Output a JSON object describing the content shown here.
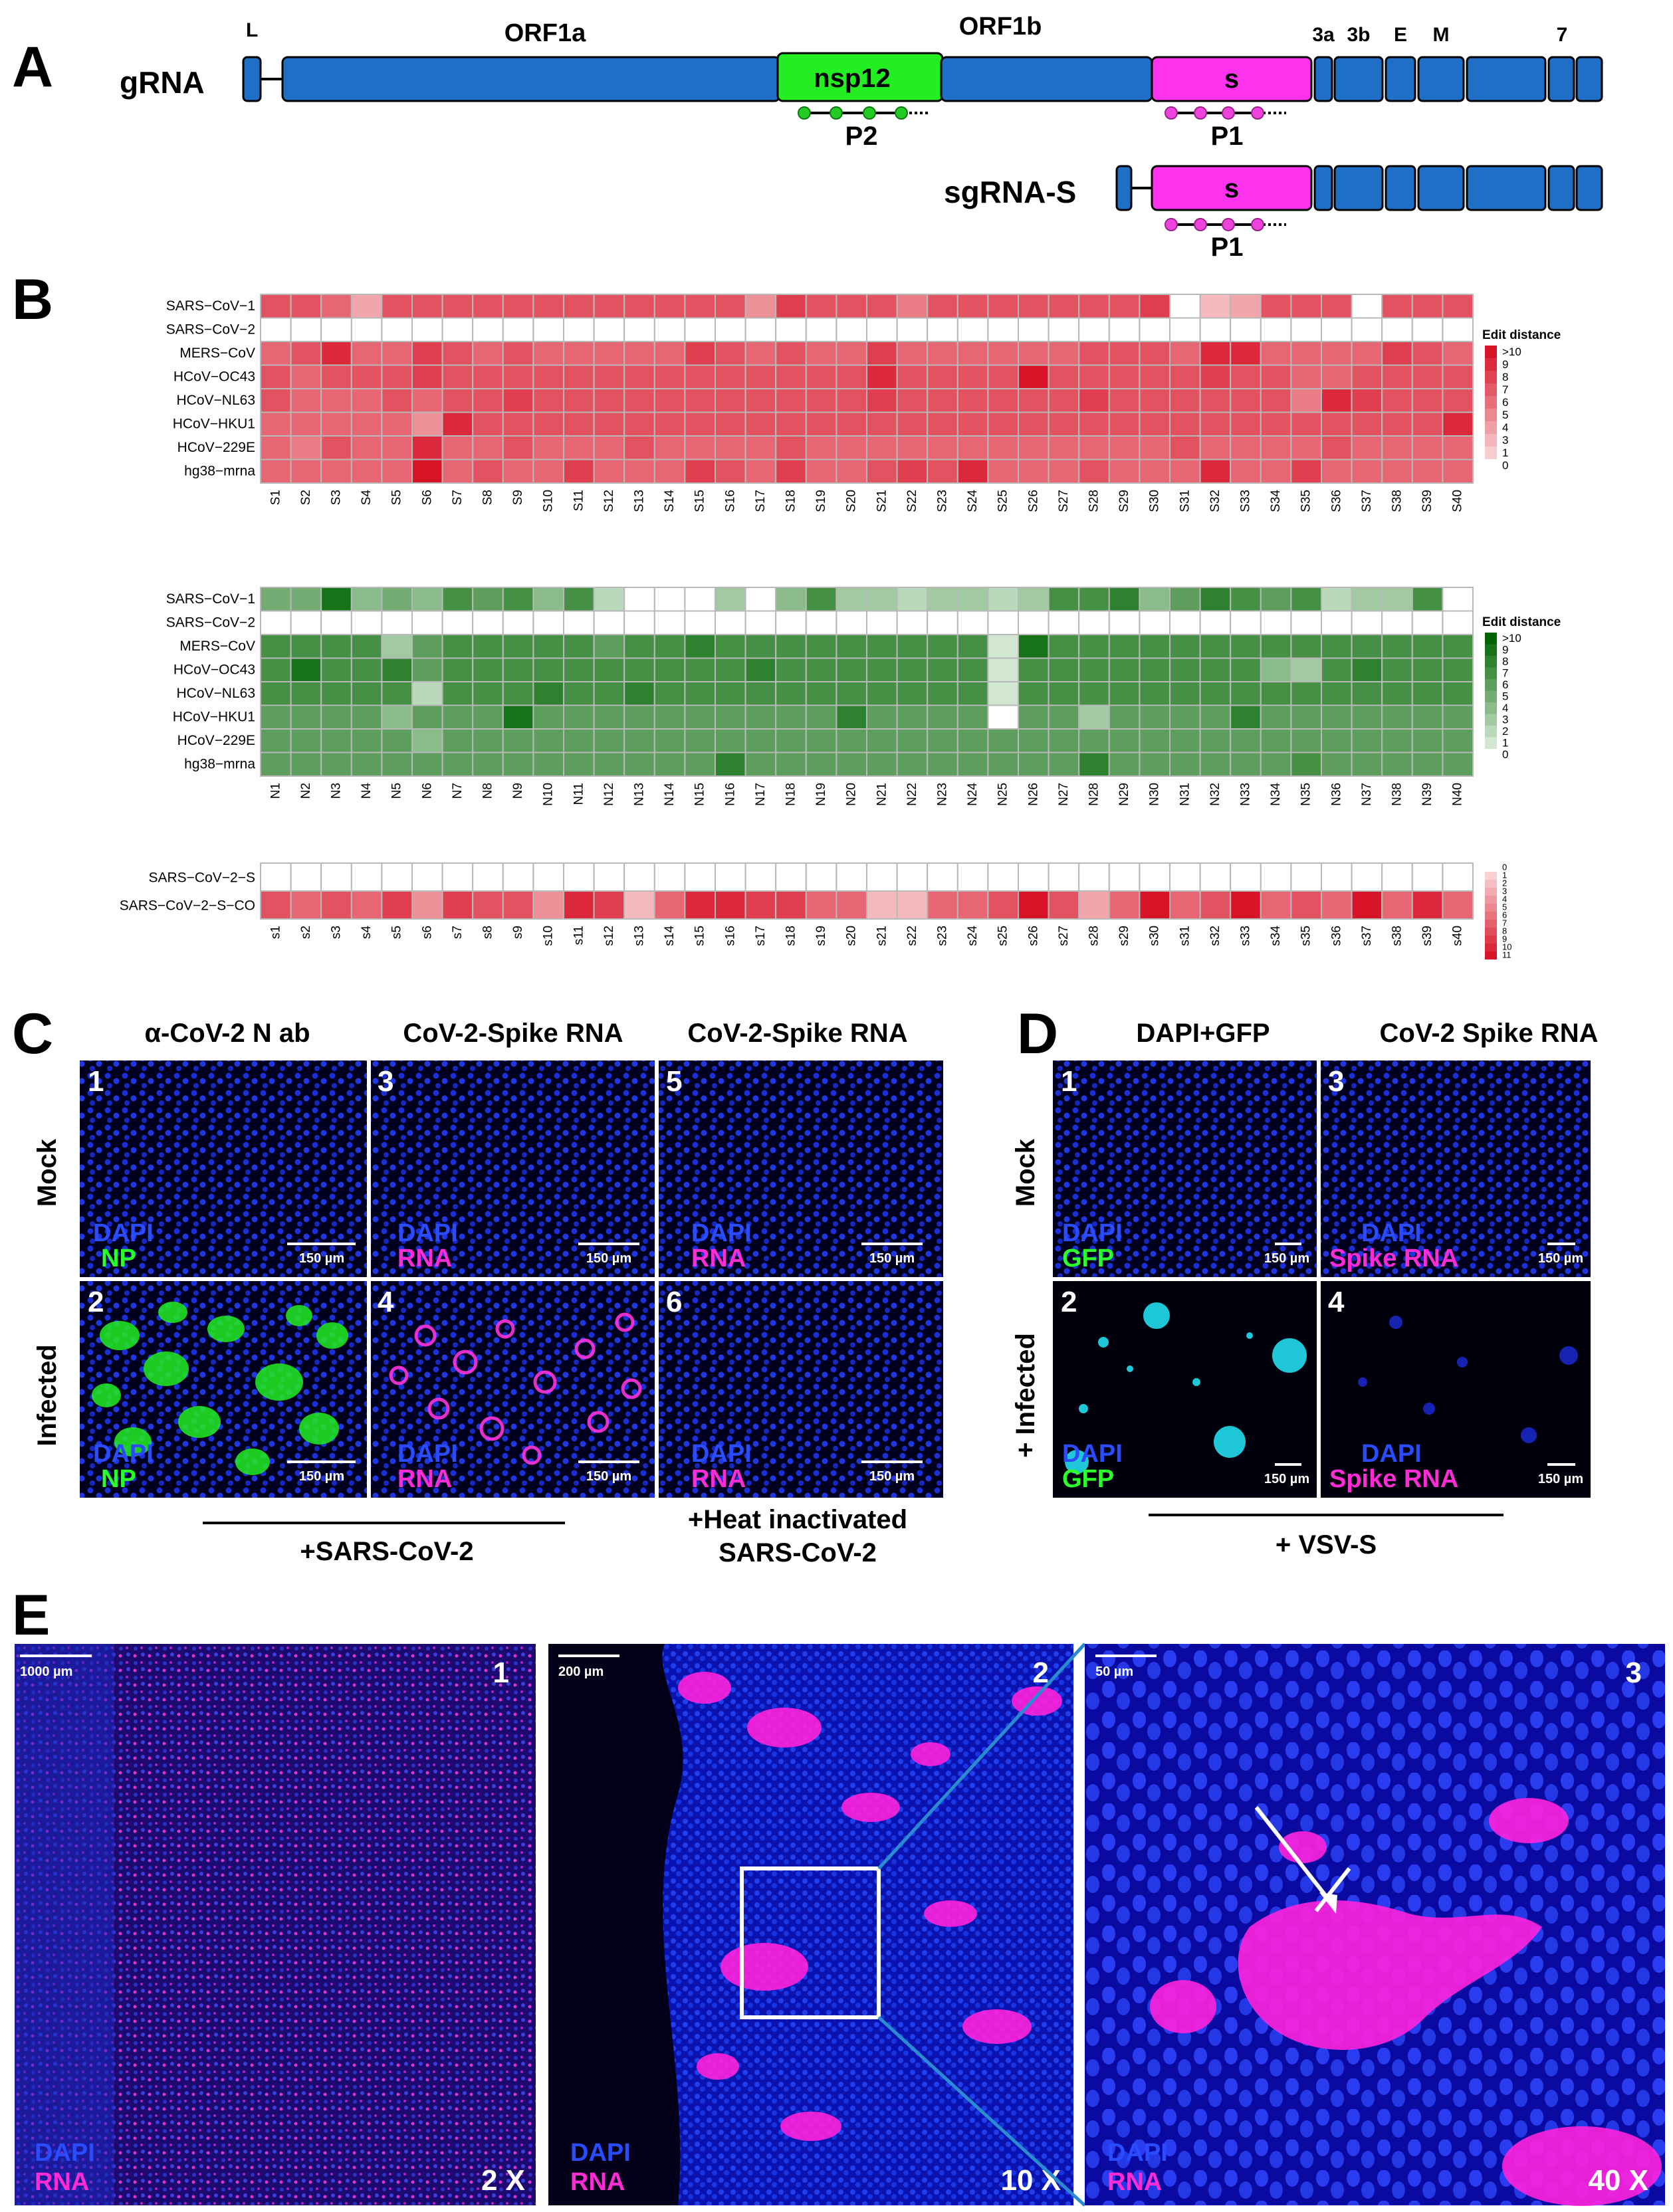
{
  "panels": {
    "A": {
      "letter": "A",
      "track1_label": "gRNA",
      "track2_label": "sgRNA-S",
      "segments_top": {
        "L": "L",
        "ORF1a": "ORF1a",
        "ORF1b": "ORF1b",
        "a3": "3a",
        "b3": "3b",
        "E": "E",
        "M": "M",
        "s7": "7"
      },
      "nsp12": "nsp12",
      "s_label": "s",
      "P1": "P1",
      "P2": "P2"
    },
    "B": {
      "letter": "B",
      "legend_title": "Edit distance",
      "row_labels": [
        "SARS−CoV−1",
        "SARS−CoV−2",
        "MERS−CoV",
        "HCoV−OC43",
        "HCoV−NL63",
        "HCoV−HKU1",
        "HCoV−229E",
        "hg38−mrna"
      ],
      "legend_ticks": [
        ">10",
        "9",
        "8",
        "7",
        "6",
        "5",
        "4",
        "3",
        "1",
        "0"
      ],
      "legend_ticks_green": [
        ">10",
        "9",
        "8",
        "7",
        "6",
        "5",
        "4",
        "3",
        "2",
        "1",
        "0"
      ],
      "legend_ticks_small": [
        "0",
        "1",
        "2",
        "3",
        "4",
        "5",
        "6",
        "7",
        "8",
        "9",
        "10",
        "11"
      ],
      "co_row_labels": [
        "SARS−CoV−2−S",
        "SARS−CoV−2−S−CO"
      ]
    },
    "C": {
      "letter": "C",
      "col_heads": [
        "α-CoV-2 N ab",
        "CoV-2-Spike RNA",
        "CoV-2-Spike RNA"
      ],
      "row_heads": [
        "Mock",
        "Infected"
      ],
      "nums": [
        "1",
        "2",
        "3",
        "4",
        "5",
        "6"
      ],
      "dapi": "DAPI",
      "np": "NP",
      "rna": "RNA",
      "scale": "150 µm",
      "footer1": "+SARS-CoV-2",
      "footer2a": "+Heat inactivated",
      "footer2b": "SARS-CoV-2"
    },
    "D": {
      "letter": "D",
      "col_heads": [
        "DAPI+GFP",
        "CoV-2 Spike RNA"
      ],
      "row_heads": [
        "Mock",
        "+ Infected"
      ],
      "nums": [
        "1",
        "2",
        "3",
        "4"
      ],
      "dapi": "DAPI",
      "gfp": "GFP",
      "spike": "Spike RNA",
      "scale": "150 µm",
      "footer": "+ VSV-S"
    },
    "E": {
      "letter": "E",
      "nums": [
        "1",
        "2",
        "3"
      ],
      "scales": [
        "1000 µm",
        "200 µm",
        "50 µm"
      ],
      "mags": [
        "2 X",
        "10 X",
        "40 X"
      ],
      "dapi": "DAPI",
      "rna": "RNA"
    }
  },
  "chart_data": [
    {
      "type": "heatmap",
      "name_note": "",
      "colors": "red",
      "rows": [
        "SARS−CoV−1",
        "SARS−CoV−2",
        "MERS−CoV",
        "HCoV−OC43",
        "HCoV−NL63",
        "HCoV−HKU1",
        "HCoV−229E",
        "hg38−mrna"
      ],
      "columns": [
        "S1",
        "S2",
        "S3",
        "S4",
        "S5",
        "S6",
        "S7",
        "S8",
        "S9",
        "S10",
        "S11",
        "S12",
        "S13",
        "S14",
        "S15",
        "S16",
        "S17",
        "S18",
        "S19",
        "S20",
        "S21",
        "S22",
        "S23",
        "S24",
        "S25",
        "S26",
        "S27",
        "S28",
        "S29",
        "S30",
        "S31",
        "S32",
        "S33",
        "S34",
        "S35",
        "S36",
        "S37",
        "S38",
        "S39",
        "S40"
      ],
      "values": [
        [
          7,
          7,
          6,
          3,
          7,
          7,
          7,
          7,
          7,
          7,
          7,
          7,
          7,
          7,
          7,
          7,
          4,
          8,
          7,
          7,
          7,
          5,
          7,
          7,
          7,
          7,
          7,
          7,
          7,
          8,
          0,
          2,
          3,
          7,
          7,
          7,
          0,
          7,
          7,
          7
        ],
        [
          0,
          0,
          0,
          0,
          0,
          0,
          0,
          0,
          0,
          0,
          0,
          0,
          0,
          0,
          0,
          0,
          0,
          0,
          0,
          0,
          0,
          0,
          0,
          0,
          0,
          0,
          0,
          0,
          0,
          0,
          0,
          0,
          0,
          0,
          0,
          0,
          0,
          0,
          0,
          0
        ],
        [
          6,
          7,
          9,
          6,
          6,
          8,
          7,
          6,
          7,
          6,
          6,
          6,
          6,
          6,
          8,
          7,
          6,
          7,
          6,
          6,
          8,
          6,
          6,
          6,
          6,
          6,
          6,
          7,
          7,
          7,
          6,
          9,
          9,
          6,
          6,
          6,
          6,
          8,
          7,
          6
        ],
        [
          7,
          6,
          7,
          7,
          7,
          8,
          7,
          7,
          7,
          7,
          7,
          7,
          7,
          7,
          7,
          7,
          7,
          7,
          7,
          7,
          9,
          7,
          7,
          7,
          7,
          10,
          7,
          7,
          7,
          7,
          7,
          8,
          7,
          7,
          6,
          6,
          7,
          7,
          7,
          7
        ],
        [
          7,
          6,
          6,
          6,
          7,
          6,
          7,
          7,
          8,
          7,
          7,
          7,
          7,
          7,
          7,
          7,
          7,
          7,
          7,
          7,
          8,
          7,
          7,
          7,
          7,
          7,
          7,
          8,
          7,
          7,
          7,
          7,
          7,
          7,
          5,
          9,
          8,
          7,
          7,
          7
        ],
        [
          6,
          6,
          6,
          6,
          6,
          4,
          9,
          7,
          7,
          7,
          7,
          7,
          7,
          7,
          7,
          7,
          7,
          7,
          7,
          7,
          7,
          7,
          7,
          7,
          7,
          7,
          7,
          7,
          7,
          7,
          7,
          7,
          7,
          7,
          7,
          7,
          7,
          7,
          7,
          9
        ],
        [
          6,
          5,
          7,
          6,
          6,
          9,
          6,
          6,
          7,
          6,
          6,
          6,
          7,
          6,
          6,
          6,
          6,
          7,
          6,
          6,
          6,
          6,
          6,
          6,
          6,
          6,
          6,
          6,
          6,
          6,
          7,
          6,
          6,
          6,
          6,
          7,
          6,
          6,
          6,
          6
        ],
        [
          6,
          6,
          6,
          6,
          6,
          10,
          6,
          7,
          6,
          6,
          8,
          6,
          6,
          6,
          8,
          7,
          6,
          8,
          6,
          6,
          7,
          8,
          7,
          9,
          6,
          6,
          6,
          7,
          6,
          6,
          6,
          9,
          6,
          6,
          8,
          6,
          6,
          6,
          6,
          6
        ]
      ]
    },
    {
      "type": "heatmap",
      "colors": "green",
      "rows": [
        "SARS−CoV−1",
        "SARS−CoV−2",
        "MERS−CoV",
        "HCoV−OC43",
        "HCoV−NL63",
        "HCoV−HKU1",
        "HCoV−229E",
        "hg38−mrna"
      ],
      "columns": [
        "N1",
        "N2",
        "N3",
        "N4",
        "N5",
        "N6",
        "N7",
        "N8",
        "N9",
        "N10",
        "N11",
        "N12",
        "N13",
        "N14",
        "N15",
        "N16",
        "N17",
        "N18",
        "N19",
        "N20",
        "N21",
        "N22",
        "N23",
        "N24",
        "N25",
        "N26",
        "N27",
        "N28",
        "N29",
        "N30",
        "N31",
        "N32",
        "N33",
        "N34",
        "N35",
        "N36",
        "N37",
        "N38",
        "N39",
        "N40"
      ],
      "values": [
        [
          5,
          5,
          9,
          4,
          5,
          4,
          7,
          6,
          7,
          4,
          7,
          2,
          0,
          0,
          0,
          3,
          0,
          4,
          7,
          3,
          3,
          2,
          3,
          3,
          2,
          3,
          7,
          7,
          8,
          4,
          6,
          8,
          7,
          6,
          7,
          2,
          3,
          3,
          7,
          0
        ],
        [
          0,
          0,
          0,
          0,
          0,
          0,
          0,
          0,
          0,
          0,
          0,
          0,
          0,
          0,
          0,
          0,
          0,
          0,
          0,
          0,
          0,
          0,
          0,
          0,
          0,
          0,
          0,
          0,
          0,
          0,
          0,
          0,
          0,
          0,
          0,
          0,
          0,
          0,
          0,
          0
        ],
        [
          7,
          7,
          7,
          7,
          3,
          6,
          7,
          7,
          7,
          7,
          7,
          6,
          7,
          7,
          8,
          7,
          7,
          7,
          7,
          7,
          7,
          7,
          7,
          7,
          1,
          9,
          7,
          7,
          7,
          7,
          7,
          7,
          7,
          7,
          7,
          7,
          7,
          7,
          7,
          7
        ],
        [
          7,
          9,
          7,
          7,
          8,
          6,
          7,
          7,
          7,
          7,
          7,
          7,
          7,
          7,
          7,
          7,
          8,
          7,
          7,
          7,
          7,
          7,
          7,
          7,
          1,
          7,
          7,
          7,
          7,
          7,
          7,
          7,
          7,
          4,
          3,
          7,
          8,
          7,
          7,
          7
        ],
        [
          7,
          7,
          7,
          7,
          7,
          2,
          7,
          7,
          7,
          8,
          7,
          7,
          8,
          7,
          7,
          7,
          7,
          7,
          7,
          7,
          7,
          7,
          7,
          7,
          1,
          7,
          7,
          7,
          7,
          7,
          7,
          7,
          7,
          7,
          7,
          7,
          7,
          7,
          7,
          7
        ],
        [
          6,
          6,
          6,
          6,
          4,
          6,
          6,
          6,
          9,
          6,
          6,
          6,
          6,
          6,
          6,
          6,
          6,
          6,
          6,
          8,
          6,
          6,
          6,
          6,
          0,
          6,
          6,
          3,
          6,
          6,
          6,
          6,
          8,
          6,
          6,
          6,
          6,
          6,
          6,
          6
        ],
        [
          6,
          6,
          6,
          6,
          6,
          4,
          6,
          6,
          6,
          6,
          6,
          6,
          6,
          6,
          6,
          6,
          6,
          6,
          6,
          6,
          6,
          6,
          6,
          6,
          6,
          6,
          6,
          6,
          6,
          6,
          6,
          6,
          6,
          6,
          6,
          6,
          6,
          6,
          6,
          6
        ],
        [
          6,
          6,
          6,
          6,
          6,
          6,
          6,
          6,
          6,
          6,
          6,
          6,
          6,
          6,
          6,
          8,
          6,
          6,
          6,
          6,
          6,
          6,
          6,
          6,
          6,
          6,
          6,
          8,
          6,
          6,
          6,
          6,
          6,
          6,
          7,
          6,
          6,
          6,
          6,
          6
        ]
      ]
    },
    {
      "type": "heatmap",
      "colors": "red",
      "rows": [
        "SARS−CoV−2−S",
        "SARS−CoV−2−S−CO"
      ],
      "columns": [
        "s1",
        "s2",
        "s3",
        "s4",
        "s5",
        "s6",
        "s7",
        "s8",
        "s9",
        "s10",
        "s11",
        "s12",
        "s13",
        "s14",
        "s15",
        "s16",
        "s17",
        "s18",
        "s19",
        "s20",
        "s21",
        "s22",
        "s23",
        "s24",
        "s25",
        "s26",
        "s27",
        "s28",
        "s29",
        "s30",
        "s31",
        "s32",
        "s33",
        "s34",
        "s35",
        "s36",
        "s37",
        "s38",
        "s39",
        "s40"
      ],
      "values": [
        [
          0,
          0,
          0,
          0,
          0,
          0,
          0,
          0,
          0,
          0,
          0,
          0,
          0,
          0,
          0,
          0,
          0,
          0,
          0,
          0,
          0,
          0,
          0,
          0,
          0,
          0,
          0,
          0,
          0,
          0,
          0,
          0,
          0,
          0,
          0,
          0,
          0,
          0,
          0,
          0
        ],
        [
          7,
          6,
          7,
          6,
          8,
          4,
          8,
          7,
          7,
          4,
          9,
          8,
          2,
          6,
          9,
          9,
          8,
          8,
          6,
          6,
          2,
          2,
          6,
          6,
          7,
          10,
          7,
          3,
          6,
          10,
          6,
          7,
          10,
          6,
          7,
          6,
          10,
          6,
          9,
          6
        ]
      ]
    }
  ]
}
